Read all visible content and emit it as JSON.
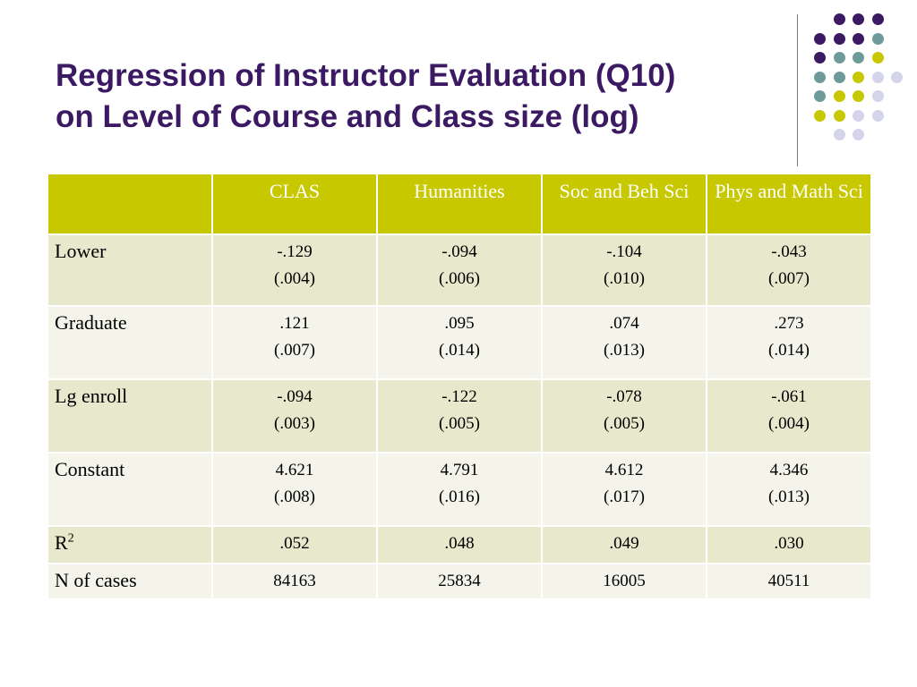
{
  "title": {
    "line1": "Regression of Instructor Evaluation (Q10)",
    "line2": "on Level of Course and Class size (log)"
  },
  "colors": {
    "title": "#3b1a63",
    "header_bg": "#c8c800",
    "row_odd": "#e8e8cc",
    "row_even": "#f4f4ea",
    "dot_purple": "#3b1a63",
    "dot_teal": "#6f9a9a",
    "dot_yellow": "#c8c800",
    "dot_lavender": "#d4d4ea"
  },
  "table": {
    "headers": [
      "",
      "CLAS",
      "Humanities",
      "Soc and Beh Sci",
      "Phys and Math Sci"
    ],
    "rows": [
      {
        "label": "Lower",
        "cells": [
          [
            "-.129",
            "(.004)"
          ],
          [
            "-.094",
            "(.006)"
          ],
          [
            "-.104",
            "(.010)"
          ],
          [
            "-.043",
            "(.007)"
          ]
        ]
      },
      {
        "label": "Graduate",
        "cells": [
          [
            ".121",
            "(.007)"
          ],
          [
            ".095",
            "(.014)"
          ],
          [
            ".074",
            "(.013)"
          ],
          [
            ".273",
            "(.014)"
          ]
        ]
      },
      {
        "label": "Lg enroll",
        "cells": [
          [
            "-.094",
            "(.003)"
          ],
          [
            "-.122",
            "(.005)"
          ],
          [
            "-.078",
            "(.005)"
          ],
          [
            "-.061",
            "(.004)"
          ]
        ]
      },
      {
        "label": "Constant",
        "cells": [
          [
            "4.621",
            "(.008)"
          ],
          [
            "4.791",
            "(.016)"
          ],
          [
            "4.612",
            "(.017)"
          ],
          [
            "4.346",
            "(.013)"
          ]
        ]
      },
      {
        "label": "R",
        "label_sup": "2",
        "cells": [
          [
            ".052"
          ],
          [
            ".048"
          ],
          [
            ".049"
          ],
          [
            ".030"
          ]
        ]
      },
      {
        "label": "N of cases",
        "cells": [
          [
            "84163"
          ],
          [
            "25834"
          ],
          [
            "16005"
          ],
          [
            "40511"
          ]
        ]
      }
    ]
  }
}
